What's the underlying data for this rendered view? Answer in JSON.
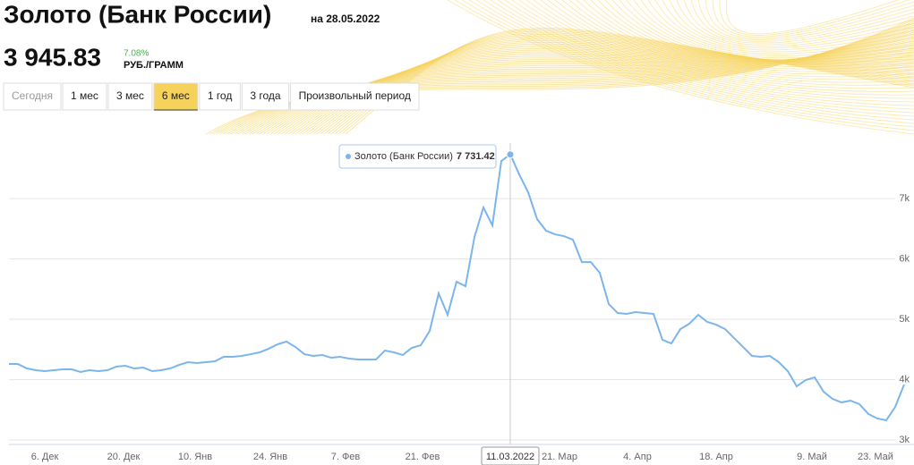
{
  "header": {
    "title": "Золото (Банк России)",
    "date": "на 28.05.2022",
    "price": "3 945.83",
    "change": "7.08%",
    "unit": "РУБ./ГРАММ"
  },
  "tabs": [
    "Сегодня",
    "1 мес",
    "3 мес",
    "6 мес",
    "1 год",
    "3 года",
    "Произвольный период"
  ],
  "active_tab": 3,
  "chart_data": {
    "type": "line",
    "series": [
      {
        "name": "Золото (Банк России)",
        "color": "#7cb5ec",
        "values": [
          4259,
          4259,
          4185,
          4156,
          4141,
          4156,
          4170,
          4170,
          4126,
          4156,
          4141,
          4156,
          4215,
          4230,
          4185,
          4200,
          4141,
          4156,
          4185,
          4244,
          4289,
          4274,
          4289,
          4304,
          4378,
          4378,
          4393,
          4422,
          4452,
          4511,
          4585,
          4630,
          4541,
          4422,
          4393,
          4407,
          4363,
          4378,
          4348,
          4333,
          4333,
          4333,
          4481,
          4452,
          4407,
          4526,
          4570,
          4807,
          5430,
          5074,
          5622,
          5548,
          6363,
          6852,
          6556,
          7622,
          7731.42,
          7400,
          7104,
          6659,
          6467,
          6407,
          6378,
          6319,
          5948,
          5948,
          5770,
          5252,
          5104,
          5089,
          5119,
          5104,
          5089,
          4659,
          4600,
          4837,
          4926,
          5074,
          4956,
          4911,
          4837,
          4689,
          4541,
          4393,
          4378,
          4393,
          4289,
          4141,
          3889,
          3993,
          4037,
          3800,
          3681,
          3622,
          3652,
          3593,
          3430,
          3356,
          3326,
          3548,
          3919
        ]
      }
    ],
    "xlim": [
      0,
      100
    ],
    "xticks": [
      {
        "value": 4,
        "label": "6. Дек"
      },
      {
        "value": 12.8,
        "label": "20. Дек"
      },
      {
        "value": 20.8,
        "label": "10. Янв"
      },
      {
        "value": 29.2,
        "label": "24. Янв"
      },
      {
        "value": 37.6,
        "label": "7. Фев"
      },
      {
        "value": 46.2,
        "label": "21. Фев"
      },
      {
        "value": 56,
        "label": "11.03.2022"
      },
      {
        "value": 61.5,
        "label": "21. Мар"
      },
      {
        "value": 70.2,
        "label": "4. Апр"
      },
      {
        "value": 79,
        "label": "18. Апр"
      },
      {
        "value": 89.7,
        "label": "9. Май"
      },
      {
        "value": 96.8,
        "label": "23. Май"
      }
    ],
    "ylim": [
      3000,
      7920
    ],
    "yticks": [
      {
        "value": 3000,
        "label": "3k"
      },
      {
        "value": 4000,
        "label": "4k"
      },
      {
        "value": 5000,
        "label": "5k"
      },
      {
        "value": 6000,
        "label": "6k"
      },
      {
        "value": 7000,
        "label": "7k"
      }
    ],
    "grid": true,
    "tooltip": {
      "x": 56,
      "label": "7 731.42"
    }
  }
}
